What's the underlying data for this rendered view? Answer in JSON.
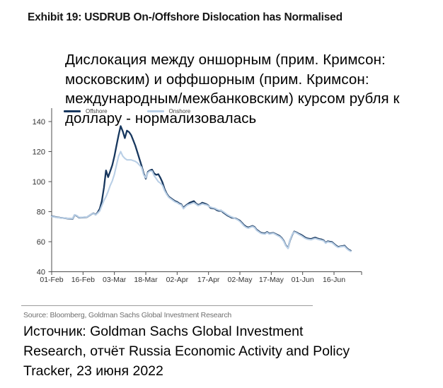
{
  "title": "Exhibit 19: USDRUB On-/Offshore Dislocation has Normalised",
  "overlay": {
    "lines": [
      "Дислокация между оншорным (прим. Кримсон:",
      "московским) и оффшорным (прим. Кримсон:",
      "международным/межбанковским) курсом рубля к",
      "доллару - нормализовалась"
    ]
  },
  "source_note": "Source: Bloomberg, Goldman Sachs Global Investment Research",
  "footer": {
    "lines": [
      "Источник: Goldman Sachs Global Investment",
      "Research, отчёт Russia Economic Activity and Policy",
      "Tracker, 23 июня 2022"
    ]
  },
  "colors": {
    "offshore": "#17375e",
    "onshore": "#b9cfe6",
    "axis": "#4d4d4d",
    "tick_text": "#333333"
  },
  "chart_data": {
    "type": "line",
    "title": "",
    "xlabel": "",
    "ylabel": "",
    "ylim": [
      40,
      140
    ],
    "y_ticks": [
      40,
      60,
      80,
      100,
      120,
      140
    ],
    "x_tick_labels": [
      "01-Feb",
      "16-Feb",
      "03-Mar",
      "18-Mar",
      "02-Apr",
      "17-Apr",
      "02-May",
      "17-May",
      "01-Jun",
      "16-Jun"
    ],
    "x_tick_days": [
      0,
      15,
      30,
      45,
      60,
      75,
      90,
      105,
      120,
      135
    ],
    "x_unit": "days since 01-Feb-2022",
    "grid": false,
    "legend_position": "top-left",
    "series": [
      {
        "name": "Offshore",
        "color": "#17375e"
      },
      {
        "name": "Onshore",
        "color": "#b9cfe6"
      }
    ],
    "points_format": [
      "day_offset",
      "Offshore",
      "Onshore"
    ],
    "points": [
      [
        0,
        77.0,
        76.8
      ],
      [
        2,
        76.4,
        76.3
      ],
      [
        4,
        76.0,
        75.9
      ],
      [
        6,
        75.7,
        75.7
      ],
      [
        8,
        75.4,
        75.5
      ],
      [
        10,
        75.2,
        75.4
      ],
      [
        11,
        77.8,
        77.9
      ],
      [
        12,
        77.2,
        77.4
      ],
      [
        13,
        76.1,
        76.3
      ],
      [
        14,
        76.0,
        76.1
      ],
      [
        16,
        76.3,
        76.4
      ],
      [
        17,
        76.4,
        76.5
      ],
      [
        19,
        78.3,
        78.4
      ],
      [
        20,
        78.9,
        78.8
      ],
      [
        21,
        78.0,
        77.9
      ],
      [
        22,
        79.5,
        79.0
      ],
      [
        23,
        82.0,
        80.5
      ],
      [
        24,
        87.0,
        84.0
      ],
      [
        25,
        96.0,
        87.5
      ],
      [
        26,
        107.5,
        90.0
      ],
      [
        27,
        103.0,
        93.5
      ],
      [
        28,
        107.0,
        97.5
      ],
      [
        29,
        111.0,
        100.5
      ],
      [
        30,
        117.0,
        105.0
      ],
      [
        31,
        124.0,
        111.0
      ],
      [
        32,
        131.0,
        117.0
      ],
      [
        33,
        137.0,
        120.0
      ],
      [
        34,
        133.5,
        117.0
      ],
      [
        35,
        129.0,
        115.5
      ],
      [
        36,
        134.0,
        114.5
      ],
      [
        37,
        133.0,
        114.5
      ],
      [
        38,
        131.0,
        114.5
      ],
      [
        39,
        127.5,
        114.0
      ],
      [
        40,
        124.0,
        113.5
      ],
      [
        41,
        119.5,
        112.5
      ],
      [
        42,
        115.0,
        111.0
      ],
      [
        43,
        110.5,
        109.5
      ],
      [
        44,
        105.5,
        104.5
      ],
      [
        45,
        102.0,
        102.5
      ],
      [
        46,
        106.5,
        106.0
      ],
      [
        47,
        107.5,
        107.0
      ],
      [
        48,
        108.0,
        107.0
      ],
      [
        49,
        105.5,
        104.0
      ],
      [
        50,
        104.5,
        102.0
      ],
      [
        51,
        105.0,
        100.0
      ],
      [
        52,
        102.5,
        99.0
      ],
      [
        53,
        99.5,
        97.5
      ],
      [
        54,
        95.0,
        94.0
      ],
      [
        55,
        92.0,
        91.5
      ],
      [
        56,
        90.0,
        89.5
      ],
      [
        57,
        89.0,
        88.5
      ],
      [
        58,
        88.0,
        87.5
      ],
      [
        59,
        87.0,
        86.5
      ],
      [
        60,
        86.5,
        86.0
      ],
      [
        61,
        85.5,
        85.0
      ],
      [
        62,
        85.0,
        84.5
      ],
      [
        63,
        82.5,
        82.0
      ],
      [
        64,
        84.0,
        83.5
      ],
      [
        65,
        85.0,
        84.5
      ],
      [
        66,
        86.0,
        85.0
      ],
      [
        67,
        86.5,
        85.5
      ],
      [
        68,
        87.0,
        86.0
      ],
      [
        69,
        85.5,
        85.0
      ],
      [
        70,
        84.5,
        84.0
      ],
      [
        71,
        85.0,
        84.5
      ],
      [
        72,
        86.0,
        85.2
      ],
      [
        73,
        85.5,
        84.8
      ],
      [
        74,
        85.0,
        84.5
      ],
      [
        75,
        84.0,
        83.8
      ],
      [
        76,
        82.5,
        83.0
      ],
      [
        77,
        82.2,
        82.6
      ],
      [
        78,
        82.0,
        82.3
      ],
      [
        79,
        81.0,
        81.5
      ],
      [
        80,
        80.5,
        81.0
      ],
      [
        81,
        80.8,
        80.8
      ],
      [
        82,
        79.5,
        80.0
      ],
      [
        83,
        78.5,
        79.0
      ],
      [
        84,
        77.5,
        78.0
      ],
      [
        85,
        76.8,
        77.2
      ],
      [
        86,
        76.0,
        76.5
      ],
      [
        87,
        75.8,
        76.0
      ],
      [
        88,
        75.5,
        75.2
      ],
      [
        89,
        74.8,
        74.5
      ],
      [
        90,
        74.0,
        73.5
      ],
      [
        91,
        72.5,
        72.0
      ],
      [
        92,
        71.0,
        70.5
      ],
      [
        93,
        70.0,
        69.5
      ],
      [
        94,
        69.5,
        69.0
      ],
      [
        95,
        70.0,
        69.6
      ],
      [
        96,
        70.5,
        70.1
      ],
      [
        97,
        69.8,
        69.4
      ],
      [
        98,
        68.0,
        67.6
      ],
      [
        99,
        67.0,
        66.6
      ],
      [
        100,
        66.0,
        65.6
      ],
      [
        101,
        65.7,
        65.3
      ],
      [
        102,
        65.5,
        65.1
      ],
      [
        103,
        66.5,
        66.1
      ],
      [
        104,
        65.4,
        65.1
      ],
      [
        105,
        65.7,
        65.4
      ],
      [
        106,
        65.9,
        65.6
      ],
      [
        107,
        65.2,
        64.9
      ],
      [
        108,
        64.5,
        64.1
      ],
      [
        109,
        63.8,
        63.4
      ],
      [
        110,
        62.5,
        62.1
      ],
      [
        111,
        60.5,
        60.2
      ],
      [
        112,
        57.5,
        57.2
      ],
      [
        113,
        55.8,
        55.5
      ],
      [
        114,
        61.0,
        61.2
      ],
      [
        115,
        64.5,
        64.8
      ],
      [
        116,
        66.8,
        66.5
      ],
      [
        117,
        66.2,
        65.9
      ],
      [
        118,
        65.4,
        65.0
      ],
      [
        119,
        64.8,
        64.3
      ],
      [
        120,
        64.0,
        63.4
      ],
      [
        121,
        63.0,
        62.4
      ],
      [
        122,
        62.3,
        61.8
      ],
      [
        123,
        62.0,
        61.5
      ],
      [
        124,
        61.8,
        61.3
      ],
      [
        125,
        62.3,
        61.8
      ],
      [
        126,
        62.8,
        62.2
      ],
      [
        127,
        62.2,
        61.7
      ],
      [
        128,
        61.8,
        61.3
      ],
      [
        129,
        61.5,
        61.0
      ],
      [
        130,
        61.0,
        60.6
      ],
      [
        131,
        59.3,
        59.0
      ],
      [
        132,
        60.3,
        59.9
      ],
      [
        133,
        60.0,
        59.6
      ],
      [
        134,
        59.8,
        59.4
      ],
      [
        135,
        58.6,
        58.2
      ],
      [
        136,
        57.4,
        57.0
      ],
      [
        137,
        56.5,
        56.2
      ],
      [
        138,
        56.9,
        56.6
      ],
      [
        139,
        57.1,
        56.8
      ],
      [
        140,
        57.4,
        57.0
      ],
      [
        141,
        55.9,
        55.5
      ],
      [
        142,
        54.7,
        54.3
      ],
      [
        143,
        54.0,
        53.6
      ]
    ]
  }
}
